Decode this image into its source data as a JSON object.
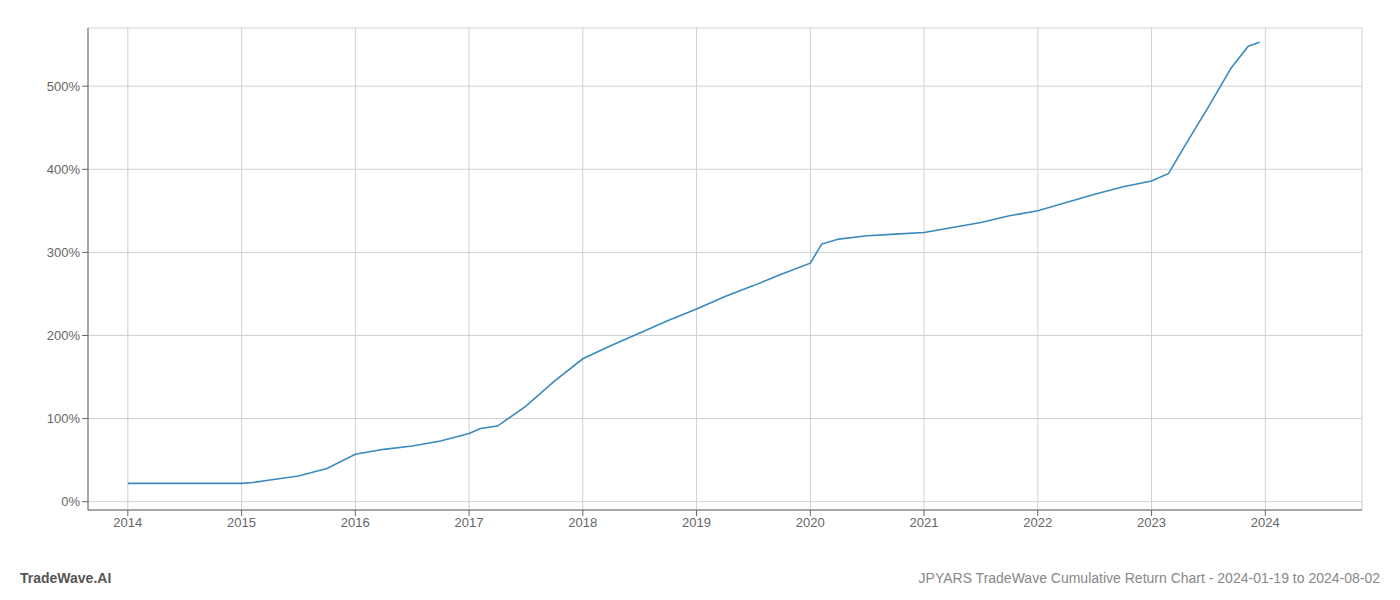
{
  "chart_data": {
    "type": "line",
    "title": "JPYARS TradeWave Cumulative Return Chart - 2024-01-19 to 2024-08-02",
    "annotations": [
      "TradeWave.AI"
    ],
    "color": "#3a8abf",
    "grid": true,
    "x": [
      2014.0,
      2014.25,
      2014.5,
      2014.75,
      2015.0,
      2015.1,
      2015.25,
      2015.5,
      2015.75,
      2016.0,
      2016.25,
      2016.5,
      2016.75,
      2017.0,
      2017.1,
      2017.25,
      2017.5,
      2017.75,
      2018.0,
      2018.25,
      2018.5,
      2018.75,
      2019.0,
      2019.25,
      2019.5,
      2019.75,
      2020.0,
      2020.1,
      2020.25,
      2020.5,
      2020.75,
      2021.0,
      2021.25,
      2021.5,
      2021.75,
      2022.0,
      2022.25,
      2022.5,
      2022.75,
      2023.0,
      2023.15,
      2023.3,
      2023.5,
      2023.7,
      2023.85,
      2023.95
    ],
    "values": [
      22,
      22,
      22,
      22,
      22,
      23,
      26,
      31,
      40,
      57,
      63,
      67,
      73,
      82,
      88,
      91,
      115,
      145,
      172,
      188,
      203,
      218,
      232,
      247,
      260,
      274,
      287,
      310,
      316,
      320,
      322,
      324,
      330,
      336,
      344,
      350,
      360,
      370,
      379,
      386,
      395,
      430,
      475,
      522,
      548,
      553
    ],
    "xlim": [
      2013.65,
      2024.85
    ],
    "xticks": [
      2014,
      2015,
      2016,
      2017,
      2018,
      2019,
      2020,
      2021,
      2022,
      2023,
      2024
    ],
    "ylim": [
      -10,
      570
    ],
    "yticks": [
      {
        "value": 0,
        "label": "0%"
      },
      {
        "value": 100,
        "label": "100%"
      },
      {
        "value": 200,
        "label": "200%"
      },
      {
        "value": 300,
        "label": "300%"
      },
      {
        "value": 400,
        "label": "400%"
      },
      {
        "value": 500,
        "label": "500%"
      }
    ]
  }
}
